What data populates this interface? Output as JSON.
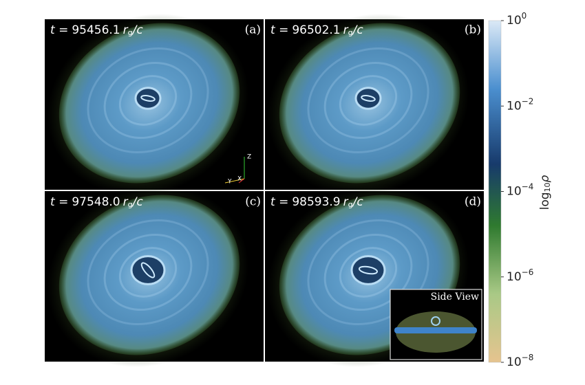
{
  "figure": {
    "time_prefix": "t =",
    "unit": {
      "base": "r",
      "sub": "g",
      "rest": "/c"
    },
    "panels": [
      {
        "time": "95456.1",
        "tag": "(a)"
      },
      {
        "time": "96502.1",
        "tag": "(b)"
      },
      {
        "time": "97548.0",
        "tag": "(c)"
      },
      {
        "time": "98593.9",
        "tag": "(d)"
      }
    ],
    "axes_triad": {
      "z": "Z",
      "y": "Y",
      "x": "X"
    },
    "inset": "Side View",
    "colorbar": {
      "label": {
        "base": "log",
        "sub": "10",
        "var": "ρ"
      },
      "tick_base": "10",
      "lim": [
        -8,
        0
      ],
      "ticks": [
        {
          "value": 0,
          "label": "0"
        },
        {
          "value": -2,
          "label": "−2"
        },
        {
          "value": -4,
          "label": "−4"
        },
        {
          "value": -6,
          "label": "−6"
        },
        {
          "value": -8,
          "label": "−8"
        }
      ]
    }
  }
}
